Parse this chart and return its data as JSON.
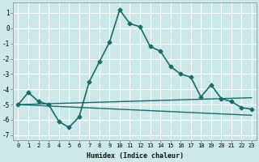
{
  "xlabel": "Humidex (Indice chaleur)",
  "background_color": "#cce8e8",
  "grid_color": "#ffffff",
  "line_color": "#1a6b6b",
  "xlim": [
    -0.5,
    23.5
  ],
  "ylim": [
    -7.3,
    1.7
  ],
  "xticks": [
    0,
    1,
    2,
    3,
    4,
    5,
    6,
    7,
    8,
    9,
    10,
    11,
    12,
    13,
    14,
    15,
    16,
    17,
    18,
    19,
    20,
    21,
    22,
    23
  ],
  "yticks": [
    -7,
    -6,
    -5,
    -4,
    -3,
    -2,
    -1,
    0,
    1
  ],
  "line1_x": [
    0,
    1,
    2,
    3,
    4,
    5,
    6,
    7,
    8,
    9,
    10,
    11,
    12,
    13,
    14,
    15,
    16,
    17,
    18,
    19,
    20,
    21,
    22,
    23
  ],
  "line1_y": [
    -5.0,
    -4.2,
    -4.8,
    -5.0,
    -6.1,
    -6.5,
    -5.8,
    -3.5,
    -2.2,
    -0.9,
    1.2,
    0.3,
    0.1,
    -1.2,
    -1.5,
    -2.5,
    -3.0,
    -3.2,
    -4.5,
    -3.7,
    -4.6,
    -4.8,
    -5.2,
    -5.3
  ],
  "line2_x": [
    0,
    23
  ],
  "line2_y": [
    -5.0,
    -4.55
  ],
  "line3_x": [
    0,
    23
  ],
  "line3_y": [
    -5.0,
    -5.7
  ]
}
